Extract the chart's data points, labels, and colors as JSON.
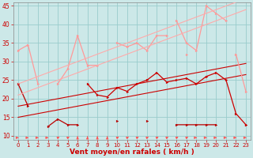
{
  "background_color": "#cce8e8",
  "grid_color": "#99cccc",
  "xlabel": "Vent moyen/en rafales ( km/h )",
  "xlabel_color": "#cc0000",
  "x_values": [
    0,
    1,
    2,
    3,
    4,
    5,
    6,
    7,
    8,
    9,
    10,
    11,
    12,
    13,
    14,
    15,
    16,
    17,
    18,
    19,
    20,
    21,
    22,
    23
  ],
  "series": [
    {
      "name": "flat_dark_red",
      "color": "#bb0000",
      "linewidth": 0.9,
      "marker": ">",
      "markersize": 2.0,
      "y": [
        24,
        18,
        null,
        12.5,
        14.5,
        13,
        13,
        null,
        null,
        null,
        14,
        null,
        null,
        14,
        null,
        null,
        13,
        13,
        13,
        13,
        13,
        null,
        null,
        13
      ]
    },
    {
      "name": "rising_dark_trend1",
      "color": "#cc0000",
      "linewidth": 0.8,
      "marker": "None",
      "markersize": 0,
      "y": [
        15,
        15.5,
        16,
        16.5,
        17,
        17.5,
        18,
        18.5,
        19,
        19.5,
        20,
        20.5,
        21,
        21.5,
        22,
        22.5,
        23,
        23.5,
        24,
        24.5,
        25,
        25.5,
        26,
        26.5
      ]
    },
    {
      "name": "rising_dark_trend2",
      "color": "#cc0000",
      "linewidth": 0.8,
      "marker": "None",
      "markersize": 0,
      "y": [
        18,
        18.5,
        19,
        19.5,
        20,
        20.5,
        21,
        21.5,
        22,
        22.5,
        23,
        23.5,
        24,
        24.5,
        25,
        25.5,
        26,
        26.5,
        27,
        27.5,
        28,
        28.5,
        29,
        29.5
      ]
    },
    {
      "name": "dark_red_main",
      "color": "#cc0000",
      "linewidth": 0.9,
      "marker": ">",
      "markersize": 2.0,
      "y": [
        null,
        null,
        null,
        null,
        null,
        null,
        null,
        24,
        21,
        20.5,
        23,
        22,
        24,
        25,
        27,
        24.5,
        25,
        25.5,
        24,
        26,
        27,
        25,
        16,
        13
      ]
    },
    {
      "name": "light_pink_flat",
      "color": "#ff9999",
      "linewidth": 0.9,
      "marker": ">",
      "markersize": 2.0,
      "y": [
        33,
        34.5,
        24,
        null,
        null,
        null,
        null,
        null,
        null,
        null,
        35,
        34,
        35,
        33,
        37,
        37,
        null,
        32,
        null,
        null,
        null,
        null,
        32,
        22
      ]
    },
    {
      "name": "light_pink_jagged",
      "color": "#ff9999",
      "linewidth": 0.9,
      "marker": ">",
      "markersize": 2.0,
      "y": [
        null,
        null,
        null,
        null,
        24,
        28,
        37,
        29,
        29,
        null,
        null,
        null,
        null,
        null,
        null,
        null,
        41,
        35,
        33,
        45,
        43,
        41,
        null,
        null
      ]
    },
    {
      "name": "light_trend1",
      "color": "#ffaaaa",
      "linewidth": 0.8,
      "marker": "None",
      "markersize": 0,
      "y": [
        21,
        22,
        23,
        24,
        25,
        26,
        27,
        28,
        29,
        30,
        31,
        32,
        33,
        34,
        35,
        36,
        37,
        38,
        39,
        40,
        41,
        42,
        43,
        44
      ]
    },
    {
      "name": "light_trend2",
      "color": "#ffaaaa",
      "linewidth": 0.8,
      "marker": "None",
      "markersize": 0,
      "y": [
        24,
        25,
        26,
        27,
        28,
        29,
        30,
        31,
        32,
        33,
        34,
        35,
        36,
        37,
        38,
        39,
        40,
        41,
        42,
        43,
        44,
        45,
        46,
        47
      ]
    }
  ],
  "arrows": {
    "color": "#ff5555",
    "angles_deg": [
      0,
      0,
      0,
      0,
      45,
      45,
      90,
      90,
      90,
      90,
      45,
      45,
      45,
      45,
      45,
      45,
      45,
      45,
      0,
      0,
      0,
      0,
      0,
      0
    ]
  },
  "ylim": [
    9,
    46
  ],
  "yticks": [
    10,
    15,
    20,
    25,
    30,
    35,
    40,
    45
  ],
  "xlim": [
    -0.5,
    23.5
  ],
  "xticks": [
    0,
    1,
    2,
    3,
    4,
    5,
    6,
    7,
    8,
    9,
    10,
    11,
    12,
    13,
    14,
    15,
    16,
    17,
    18,
    19,
    20,
    21,
    22,
    23
  ]
}
